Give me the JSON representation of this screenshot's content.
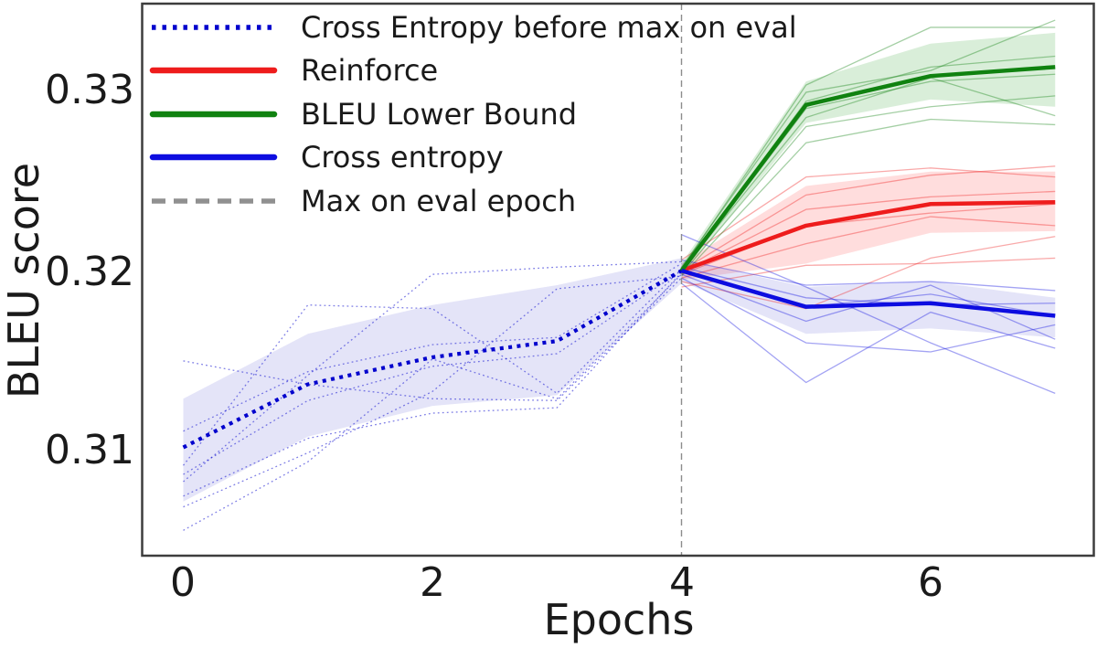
{
  "chart_data": {
    "type": "line",
    "title": "",
    "xlabel": "Epochs",
    "ylabel": "BLEU score",
    "xlim": [
      -0.33,
      7.31
    ],
    "ylim": [
      0.3041,
      0.3347
    ],
    "xticks": [
      0,
      2,
      4,
      6
    ],
    "yticks": [
      0.31,
      0.32,
      0.33
    ],
    "xtick_labels": [
      "0",
      "2",
      "4",
      "6"
    ],
    "ytick_labels": [
      "0.31",
      "0.32",
      "0.33"
    ],
    "grid": "off",
    "legend_position": "upper left",
    "frame_color": "#3d3d3d",
    "text_color": "#1a1a1a",
    "vline": {
      "x": 4,
      "label": "Max on eval epoch",
      "color": "#8c8c8c",
      "legend_color": "#909090",
      "style": "dashed"
    },
    "series": [
      {
        "name": "Cross Entropy before max on eval",
        "color": "#0000cd",
        "band_color": "#4040cf",
        "band_opacity": 0.14,
        "line_style": "dotted",
        "x": [
          0,
          1,
          2,
          3,
          4
        ],
        "mean": [
          0.3101,
          0.3136,
          0.3151,
          0.316,
          0.3199
        ],
        "band_lower": [
          0.3071,
          0.3107,
          0.3124,
          0.313,
          0.3192
        ],
        "band_upper": [
          0.3128,
          0.3164,
          0.318,
          0.3191,
          0.3206
        ],
        "runs": [
          [
            0.3055,
            0.3093,
            0.315,
            0.3128,
            0.3197
          ],
          [
            0.3149,
            0.3136,
            0.3128,
            0.3127,
            0.3195
          ],
          [
            0.3082,
            0.3141,
            0.3197,
            0.3201,
            0.3204
          ],
          [
            0.3091,
            0.318,
            0.3178,
            0.3131,
            0.32
          ],
          [
            0.3074,
            0.3106,
            0.312,
            0.3123,
            0.3198
          ],
          [
            0.3086,
            0.3127,
            0.3146,
            0.3153,
            0.3199
          ],
          [
            0.311,
            0.3143,
            0.3158,
            0.3162,
            0.3203
          ],
          [
            0.3068,
            0.3098,
            0.3132,
            0.3189,
            0.3196
          ]
        ]
      },
      {
        "name": "Reinforce",
        "color": "#ee1c1c",
        "band_color": "#ff4040",
        "band_opacity": 0.18,
        "line_style": "solid",
        "x": [
          4,
          5,
          6,
          7
        ],
        "mean": [
          0.3199,
          0.3224,
          0.3236,
          0.3237
        ],
        "band_lower": [
          0.3194,
          0.3203,
          0.322,
          0.3221
        ],
        "band_upper": [
          0.3203,
          0.3246,
          0.3254,
          0.3254
        ],
        "runs": [
          [
            0.3205,
            0.3251,
            0.3256,
            0.3251
          ],
          [
            0.3199,
            0.3241,
            0.3252,
            0.3257
          ],
          [
            0.3198,
            0.3233,
            0.324,
            0.3243
          ],
          [
            0.3197,
            0.3224,
            0.3231,
            0.3236
          ],
          [
            0.3195,
            0.3214,
            0.3229,
            0.3224
          ],
          [
            0.3193,
            0.3178,
            0.3206,
            0.3218
          ],
          [
            0.319,
            0.3202,
            0.3203,
            0.3206
          ]
        ]
      },
      {
        "name": "BLEU Lower Bound",
        "color": "#108210",
        "band_color": "#2f9e2f",
        "band_opacity": 0.18,
        "line_style": "solid",
        "x": [
          4,
          5,
          6,
          7
        ],
        "mean": [
          0.3199,
          0.3291,
          0.3307,
          0.3312
        ],
        "band_lower": [
          0.3196,
          0.3281,
          0.3294,
          0.329
        ],
        "band_upper": [
          0.3203,
          0.3304,
          0.3325,
          0.3331
        ],
        "runs": [
          [
            0.32,
            0.3302,
            0.3334,
            0.3334
          ],
          [
            0.3201,
            0.3298,
            0.331,
            0.3338
          ],
          [
            0.3199,
            0.3293,
            0.3312,
            0.3318
          ],
          [
            0.3198,
            0.3289,
            0.3304,
            0.3308
          ],
          [
            0.3199,
            0.3284,
            0.3306,
            0.3285
          ],
          [
            0.3197,
            0.3279,
            0.329,
            0.3296
          ],
          [
            0.3196,
            0.327,
            0.3283,
            0.328
          ]
        ]
      },
      {
        "name": "Cross entropy",
        "color": "#0d0de0",
        "band_color": "#4040cf",
        "band_opacity": 0.14,
        "line_style": "solid",
        "x": [
          4,
          5,
          6,
          7
        ],
        "mean": [
          0.3199,
          0.3179,
          0.3181,
          0.3174
        ],
        "band_lower": [
          0.3193,
          0.3164,
          0.3167,
          0.3162
        ],
        "band_upper": [
          0.3205,
          0.319,
          0.3193,
          0.3184
        ],
        "runs": [
          [
            0.3219,
            0.319,
            0.3159,
            0.3131
          ],
          [
            0.3205,
            0.3191,
            0.3193,
            0.3188
          ],
          [
            0.3201,
            0.3184,
            0.318,
            0.3181
          ],
          [
            0.3199,
            0.3179,
            0.3186,
            0.3174
          ],
          [
            0.3197,
            0.3171,
            0.3191,
            0.3161
          ],
          [
            0.3195,
            0.3159,
            0.3154,
            0.3169
          ],
          [
            0.3192,
            0.3137,
            0.3176,
            0.3156
          ]
        ]
      }
    ]
  }
}
